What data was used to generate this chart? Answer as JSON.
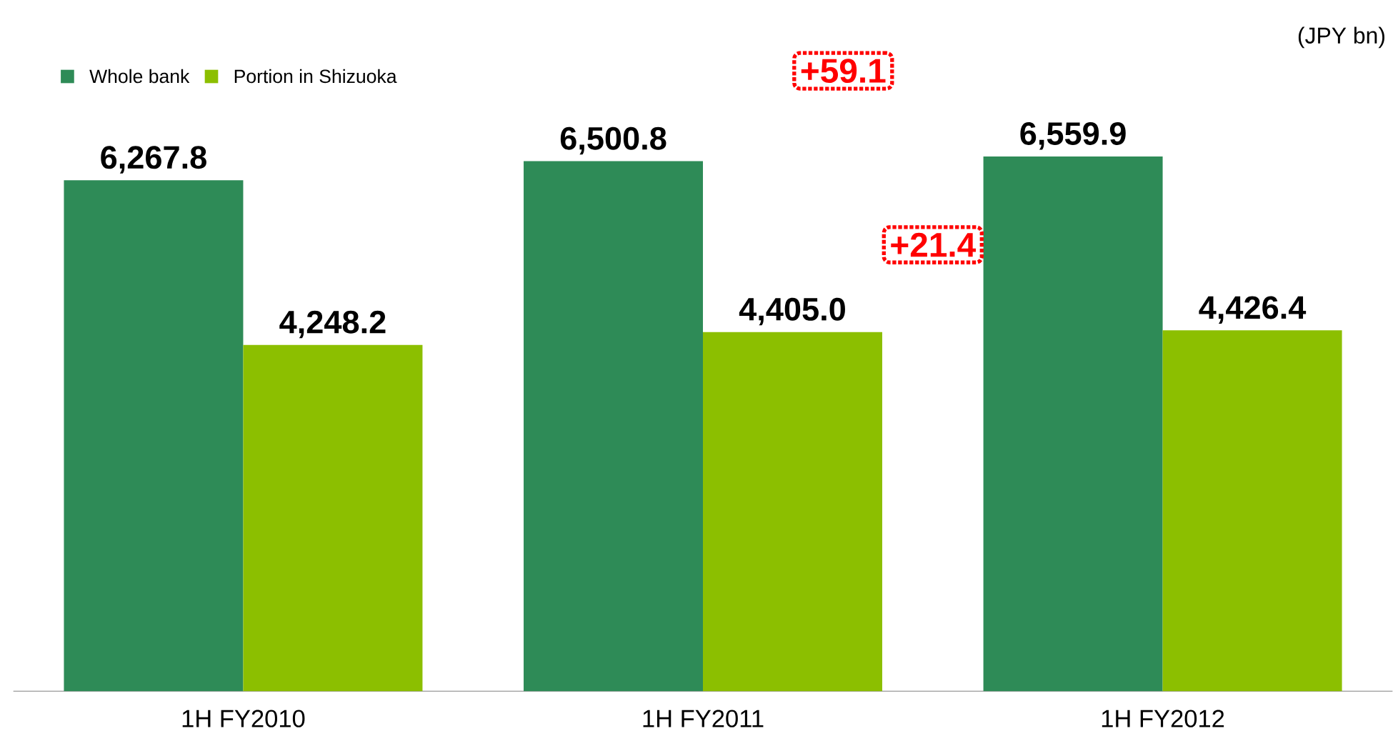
{
  "chart_data": {
    "type": "bar",
    "categories": [
      "1H FY2010",
      "1H FY2011",
      "1H FY2012"
    ],
    "series": [
      {
        "name": "Whole bank",
        "color": "#2e8b57",
        "values": [
          6267.8,
          6500.8,
          6559.9
        ],
        "value_labels": [
          "6,267.8",
          "6,500.8",
          "6,559.9"
        ]
      },
      {
        "name": "Portion in Shizuoka",
        "color": "#8cbf00",
        "values": [
          4248.2,
          4405.0,
          4426.4
        ],
        "value_labels": [
          "4,248.2",
          "4,405.0",
          "4,426.4"
        ]
      }
    ],
    "legend": "top left",
    "grid": false,
    "annotations": [
      "(JPY bn)",
      "+59.1",
      "+21.4"
    ]
  }
}
